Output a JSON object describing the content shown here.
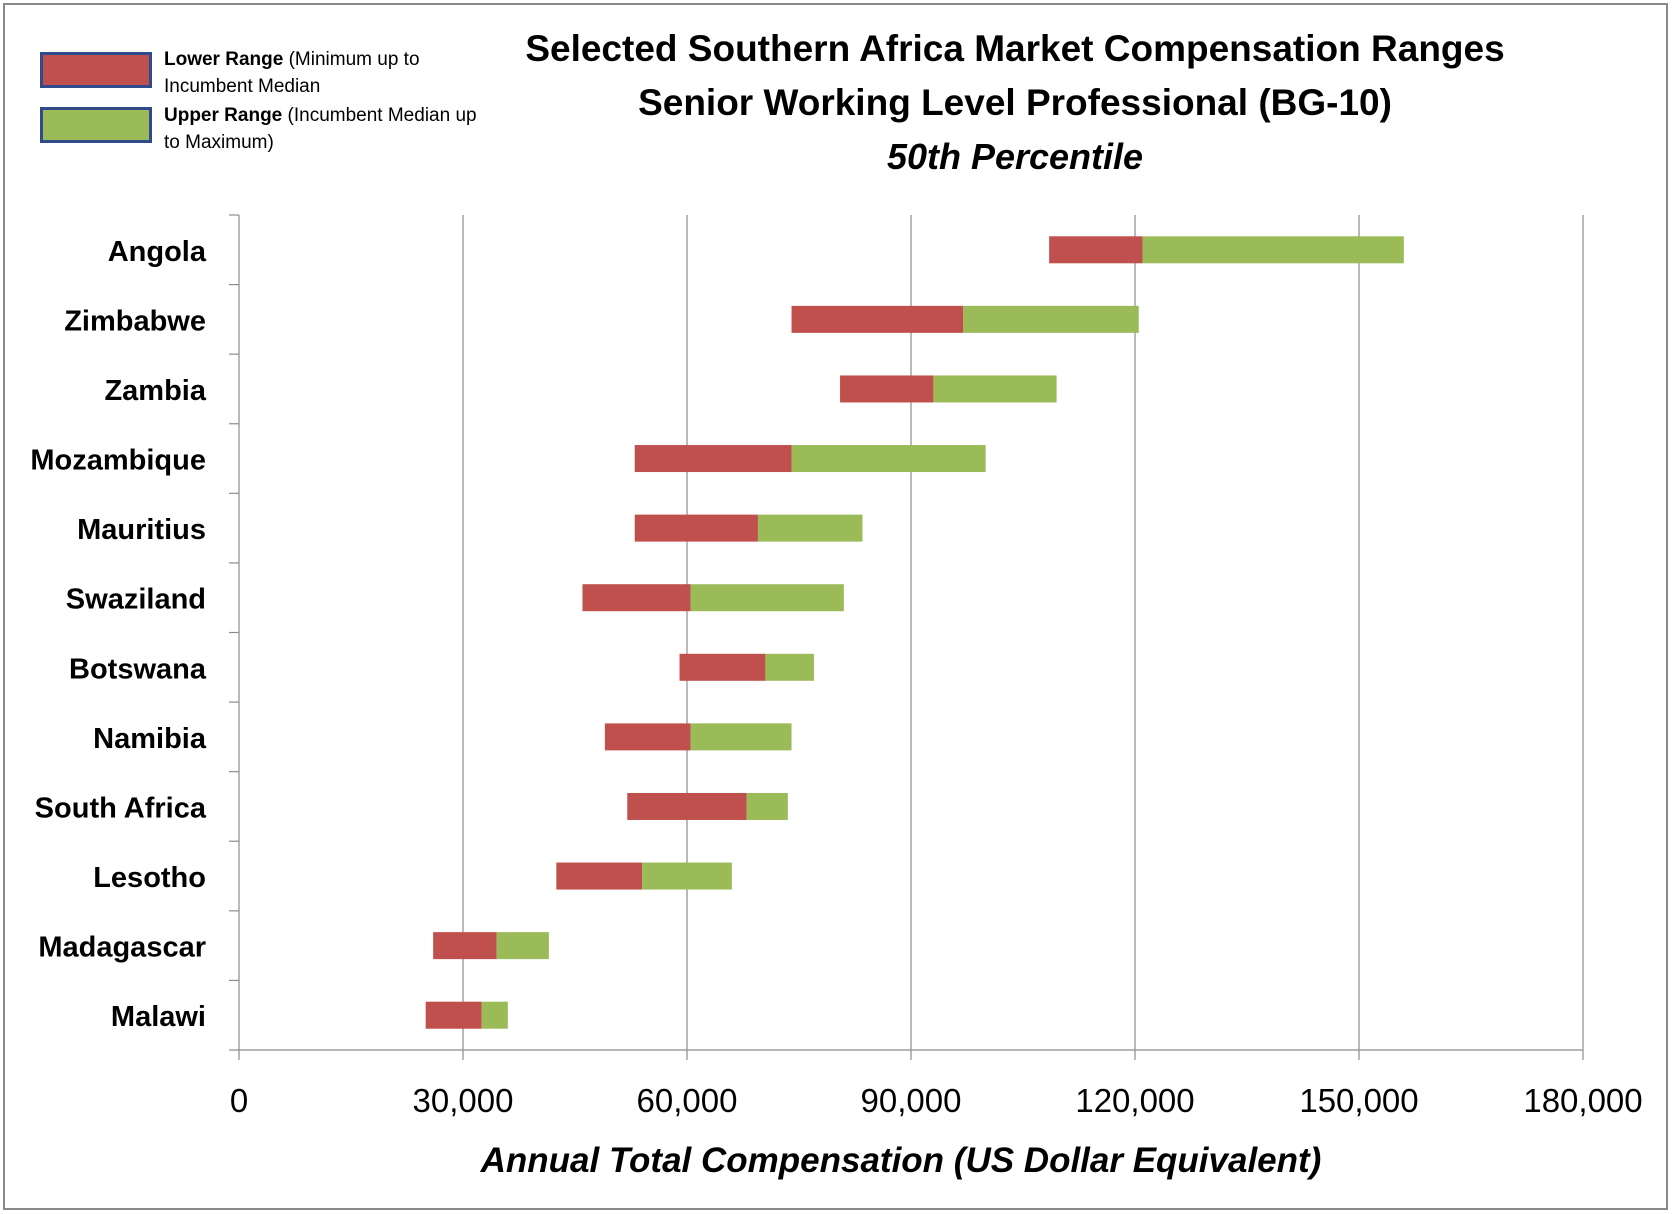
{
  "title": "Selected Southern Africa Market Compensation Ranges",
  "subtitle": "Senior Working Level Professional (BG-10)",
  "subtitle2": "50th Percentile",
  "legend": [
    {
      "name_bold": "Lower Range",
      "name_rest": " (Minimum up to Incumbent Median",
      "color": "#c0504d"
    },
    {
      "name_bold": "Upper Range",
      "name_rest": " (Incumbent Median up to Maximum)",
      "color": "#9bbb59"
    }
  ],
  "chart_data": {
    "type": "bar",
    "orientation": "horizontal",
    "stacked_range": true,
    "categories": [
      "Angola",
      "Zimbabwe",
      "Zambia",
      "Mozambique",
      "Mauritius",
      "Swaziland",
      "Botswana",
      "Namibia",
      "South Africa",
      "Lesotho",
      "Madagascar",
      "Malawi"
    ],
    "series": [
      {
        "name": "Lower Range (Minimum up to Incumbent Median",
        "color": "#c0504d",
        "start": [
          108500,
          74000,
          80500,
          53000,
          53000,
          46000,
          59000,
          49000,
          52000,
          42500,
          26000,
          25000
        ],
        "end": [
          121000,
          97000,
          93000,
          74000,
          69500,
          60500,
          70500,
          60500,
          68000,
          54000,
          34500,
          32500
        ]
      },
      {
        "name": "Upper Range (Incumbent Median up to Maximum)",
        "color": "#9bbb59",
        "start": [
          121000,
          97000,
          93000,
          74000,
          69500,
          60500,
          70500,
          60500,
          68000,
          54000,
          34500,
          32500
        ],
        "end": [
          156000,
          120500,
          109500,
          100000,
          83500,
          81000,
          77000,
          74000,
          73500,
          66000,
          41500,
          36000
        ]
      }
    ],
    "xlabel": "Annual Total Compensation (US Dollar Equivalent)",
    "xlim": [
      0,
      180000
    ],
    "xticks": [
      0,
      30000,
      60000,
      90000,
      120000,
      150000,
      180000
    ],
    "xtick_labels": [
      "0",
      "30,000",
      "60,000",
      "90,000",
      "120,000",
      "150,000",
      "180,000"
    ],
    "grid": "vertical",
    "legend_position": "top-left"
  }
}
